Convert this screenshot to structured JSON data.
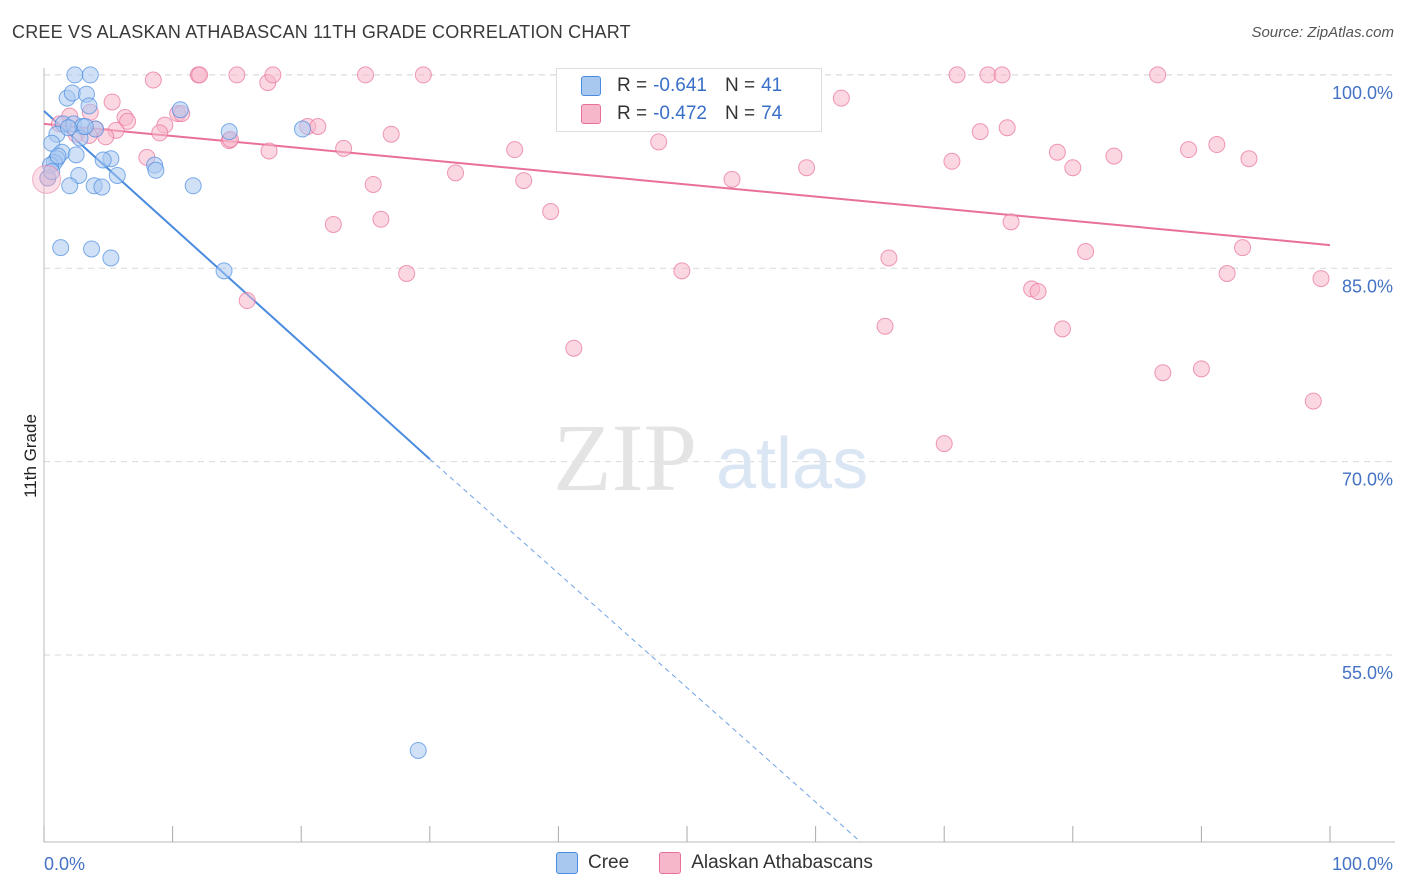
{
  "title": "CREE VS ALASKAN ATHABASCAN 11TH GRADE CORRELATION CHART",
  "source": "Source: ZipAtlas.com",
  "watermark": {
    "zip": "ZIP",
    "atlas": "atlas"
  },
  "legend": {
    "r_label": "R =",
    "n_label": "N =",
    "rows": [
      {
        "r": "-0.641",
        "n": "41",
        "color": "#a9c8f0"
      },
      {
        "r": "-0.472",
        "n": "74",
        "color": "#f7b7cb"
      }
    ]
  },
  "chart_data": {
    "type": "scatter",
    "title": "CREE VS ALASKAN ATHABASCAN 11TH GRADE CORRELATION CHART",
    "xlabel": "",
    "ylabel": "11th Grade",
    "xlim": [
      0,
      100
    ],
    "ylim": [
      40.5,
      101
    ],
    "x_tick_labels": [
      "0.0%",
      "100.0%"
    ],
    "y_ticks": [
      55,
      70,
      85,
      100
    ],
    "y_tick_labels": [
      "55.0%",
      "70.0%",
      "85.0%",
      "100.0%"
    ],
    "grid": true,
    "series": [
      {
        "name": "Cree",
        "color": "#4a8be0",
        "fill": "#a9c8f0",
        "trend_start": [
          0,
          97.2
        ],
        "trend_solid_end": [
          30,
          70.2
        ],
        "trend_dashed_end": [
          63.5,
          40.5
        ],
        "points": [
          [
            2.4,
            100.0
          ],
          [
            3.6,
            100.0
          ],
          [
            1.8,
            98.2
          ],
          [
            2.2,
            98.6
          ],
          [
            3.3,
            98.5
          ],
          [
            3.5,
            97.6
          ],
          [
            10.6,
            97.3
          ],
          [
            1.5,
            96.2
          ],
          [
            2.3,
            96.2
          ],
          [
            3.0,
            96.0
          ],
          [
            4.0,
            95.8
          ],
          [
            1.0,
            95.4
          ],
          [
            2.8,
            95.1
          ],
          [
            14.4,
            95.6
          ],
          [
            20.1,
            95.8
          ],
          [
            0.6,
            94.7
          ],
          [
            1.4,
            94.0
          ],
          [
            2.5,
            93.8
          ],
          [
            1.0,
            93.5
          ],
          [
            5.2,
            93.5
          ],
          [
            4.6,
            93.4
          ],
          [
            0.8,
            93.2
          ],
          [
            8.6,
            93.0
          ],
          [
            8.7,
            92.6
          ],
          [
            2.7,
            92.2
          ],
          [
            5.7,
            92.2
          ],
          [
            0.3,
            92.0
          ],
          [
            2.0,
            91.4
          ],
          [
            3.9,
            91.4
          ],
          [
            4.5,
            91.3
          ],
          [
            11.6,
            91.4
          ],
          [
            1.3,
            86.6
          ],
          [
            3.7,
            86.5
          ],
          [
            5.2,
            85.8
          ],
          [
            14.0,
            84.8
          ],
          [
            0.5,
            93.0
          ],
          [
            1.9,
            95.9
          ],
          [
            3.2,
            96.0
          ],
          [
            1.1,
            93.7
          ],
          [
            0.6,
            92.5
          ],
          [
            29.1,
            47.6
          ]
        ]
      },
      {
        "name": "Alaskan Athabascans",
        "color": "#e8709a",
        "fill": "#f7b7cb",
        "trend_start": [
          0,
          96.2
        ],
        "trend_end": [
          100,
          86.8
        ],
        "points": [
          [
            8.5,
            99.6
          ],
          [
            12.0,
            100.0
          ],
          [
            12.1,
            100.0
          ],
          [
            15.0,
            100.0
          ],
          [
            17.4,
            99.4
          ],
          [
            17.8,
            100.0
          ],
          [
            25.0,
            100.0
          ],
          [
            29.5,
            100.0
          ],
          [
            71.0,
            100.0
          ],
          [
            73.4,
            100.0
          ],
          [
            74.5,
            100.0
          ],
          [
            86.6,
            100.0
          ],
          [
            62.0,
            98.2
          ],
          [
            5.3,
            97.9
          ],
          [
            10.4,
            97.0
          ],
          [
            2.0,
            96.8
          ],
          [
            3.6,
            97.1
          ],
          [
            6.3,
            96.7
          ],
          [
            6.5,
            96.4
          ],
          [
            9.4,
            96.1
          ],
          [
            4.0,
            95.8
          ],
          [
            5.6,
            95.7
          ],
          [
            20.5,
            96.0
          ],
          [
            21.3,
            96.0
          ],
          [
            27.0,
            95.4
          ],
          [
            9.0,
            95.5
          ],
          [
            2.5,
            95.4
          ],
          [
            3.5,
            95.3
          ],
          [
            14.4,
            94.9
          ],
          [
            4.8,
            95.2
          ],
          [
            72.8,
            95.6
          ],
          [
            74.9,
            95.9
          ],
          [
            91.2,
            94.6
          ],
          [
            47.8,
            94.8
          ],
          [
            23.3,
            94.3
          ],
          [
            36.6,
            94.2
          ],
          [
            17.5,
            94.1
          ],
          [
            78.8,
            94.0
          ],
          [
            83.2,
            93.7
          ],
          [
            89.0,
            94.2
          ],
          [
            93.7,
            93.5
          ],
          [
            70.6,
            93.3
          ],
          [
            8.0,
            93.6
          ],
          [
            59.3,
            92.8
          ],
          [
            80.0,
            92.8
          ],
          [
            32.0,
            92.4
          ],
          [
            37.3,
            91.8
          ],
          [
            53.5,
            91.9
          ],
          [
            25.6,
            91.5
          ],
          [
            39.4,
            89.4
          ],
          [
            26.2,
            88.8
          ],
          [
            22.5,
            88.4
          ],
          [
            75.2,
            88.6
          ],
          [
            81.0,
            86.3
          ],
          [
            93.2,
            86.6
          ],
          [
            65.7,
            85.8
          ],
          [
            49.6,
            84.8
          ],
          [
            28.2,
            84.6
          ],
          [
            92.0,
            84.6
          ],
          [
            99.3,
            84.2
          ],
          [
            76.8,
            83.4
          ],
          [
            77.3,
            83.2
          ],
          [
            15.8,
            82.5
          ],
          [
            65.4,
            80.5
          ],
          [
            79.2,
            80.3
          ],
          [
            41.2,
            78.8
          ],
          [
            87.0,
            76.9
          ],
          [
            90.0,
            77.2
          ],
          [
            98.7,
            74.7
          ],
          [
            70.0,
            71.4
          ],
          [
            0.3,
            92.0
          ],
          [
            1.2,
            96.2
          ],
          [
            10.7,
            97.0
          ],
          [
            14.5,
            95.0
          ]
        ]
      }
    ]
  }
}
